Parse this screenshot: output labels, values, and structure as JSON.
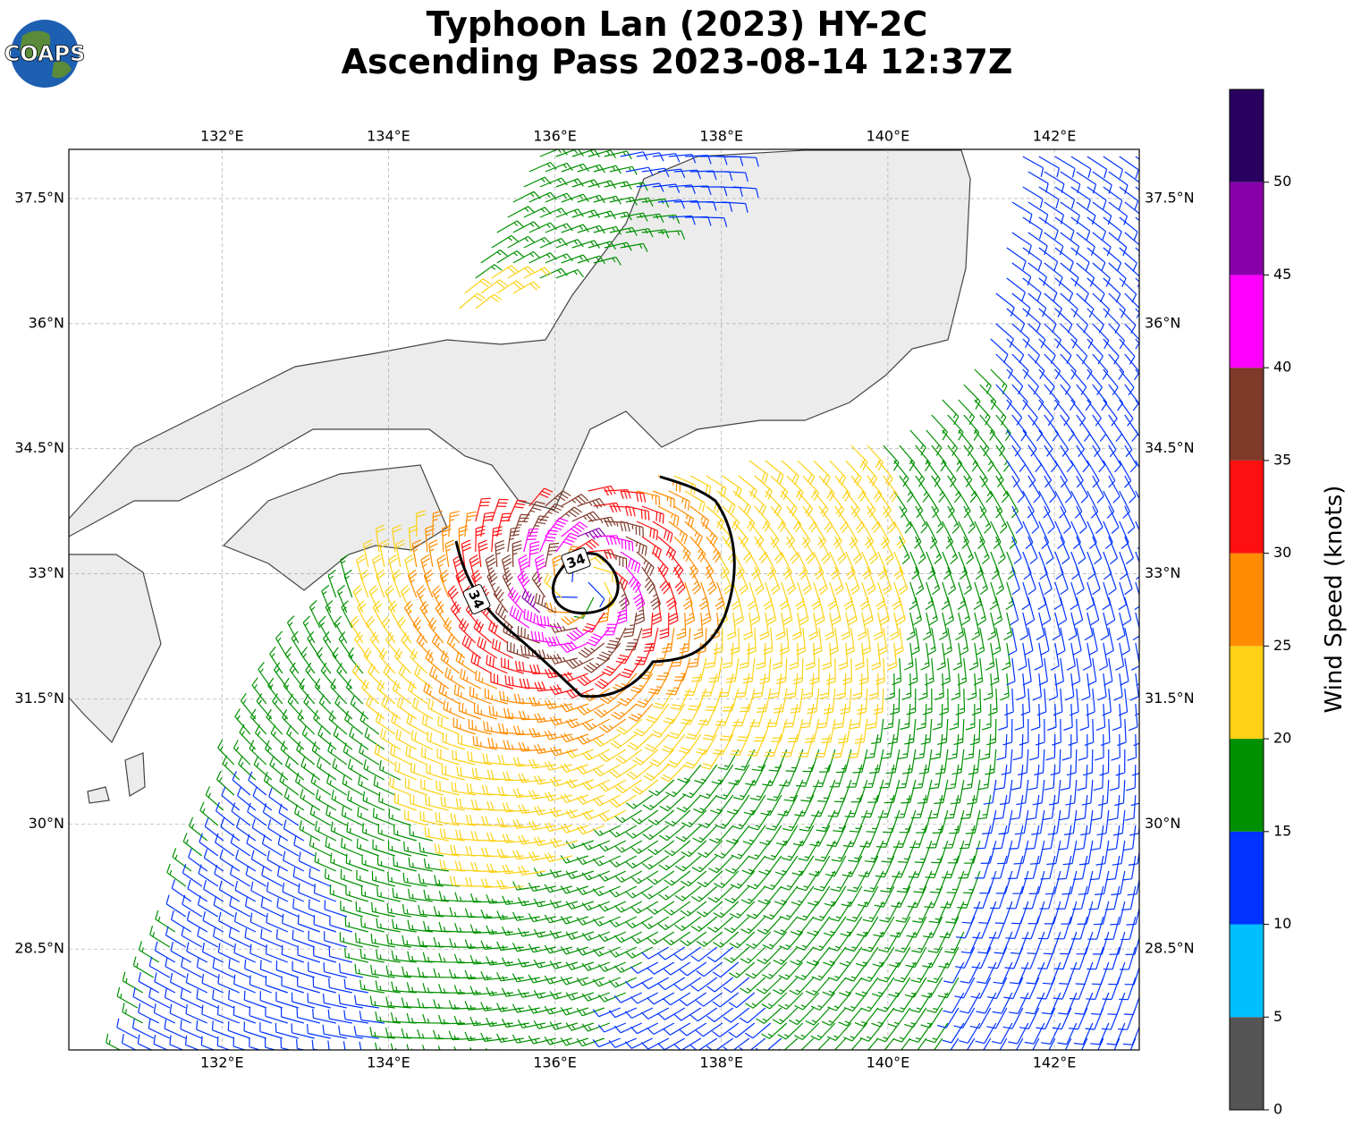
{
  "header": {
    "title_line1": "Typhoon Lan (2023) HY-2C",
    "title_line2": "Ascending Pass 2023-08-14 12:37Z"
  },
  "logo": {
    "text": "COAPS"
  },
  "map": {
    "lon_range": [
      130.16,
      143.02
    ],
    "lat_range": [
      27.29,
      38.09
    ],
    "lon_ticks": [
      {
        "value": 132,
        "label": "132°E"
      },
      {
        "value": 134,
        "label": "134°E"
      },
      {
        "value": 136,
        "label": "136°E"
      },
      {
        "value": 138,
        "label": "138°E"
      },
      {
        "value": 140,
        "label": "140°E"
      },
      {
        "value": 142,
        "label": "142°E"
      }
    ],
    "lat_ticks": [
      {
        "value": 28.5,
        "label": "28.5°N"
      },
      {
        "value": 30,
        "label": "30°N"
      },
      {
        "value": 31.5,
        "label": "31.5°N"
      },
      {
        "value": 33,
        "label": "33°N"
      },
      {
        "value": 34.5,
        "label": "34.5°N"
      },
      {
        "value": 36,
        "label": "36°N"
      },
      {
        "value": 37.5,
        "label": "37.5°N"
      }
    ],
    "contour_labels": [
      "34",
      "34"
    ]
  },
  "colorbar": {
    "label": "Wind Speed (knots)",
    "bounds": [
      0,
      5,
      10,
      15,
      20,
      25,
      30,
      35,
      40,
      45,
      50,
      55
    ],
    "colors": [
      "#555555",
      "#00bfff",
      "#0033ff",
      "#009000",
      "#fcd116",
      "#ff8c00",
      "#ff1010",
      "#7f3a2a",
      "#ff00ff",
      "#8800aa",
      "#2a0060"
    ],
    "ticks": [
      0,
      5,
      10,
      15,
      20,
      25,
      30,
      35,
      40,
      45,
      50
    ]
  }
}
